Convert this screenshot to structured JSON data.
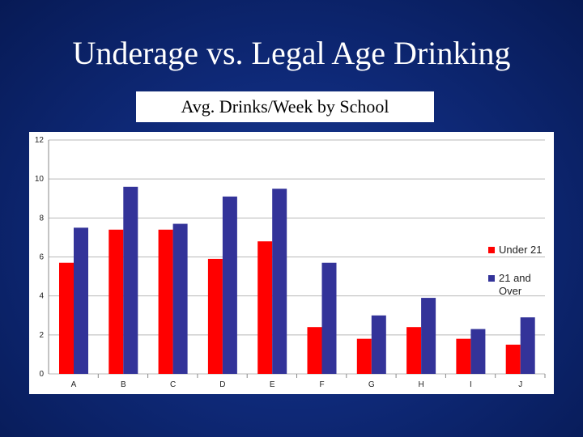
{
  "slide": {
    "title": "Underage vs. Legal Age Drinking",
    "chart_subtitle": "Avg. Drinks/Week by School"
  },
  "colors": {
    "under21": "#ff0000",
    "over21": "#333399",
    "grid": "#b8b8b8"
  },
  "chart_data": {
    "type": "bar",
    "title": "Avg. Drinks/Week by School",
    "xlabel": "",
    "ylabel": "",
    "categories": [
      "A",
      "B",
      "C",
      "D",
      "E",
      "F",
      "G",
      "H",
      "I",
      "J"
    ],
    "series": [
      {
        "name": "Under 21",
        "values": [
          5.7,
          7.4,
          7.4,
          5.9,
          6.8,
          2.4,
          1.8,
          2.4,
          1.8,
          1.5
        ]
      },
      {
        "name": "21 and Over",
        "values": [
          7.5,
          9.6,
          7.7,
          9.1,
          9.5,
          5.7,
          3.0,
          3.9,
          2.3,
          2.9
        ]
      }
    ],
    "ylim": [
      0,
      12
    ],
    "yticks": [
      0,
      2,
      4,
      6,
      8,
      10,
      12
    ],
    "grid": true,
    "legend_position": "right"
  }
}
